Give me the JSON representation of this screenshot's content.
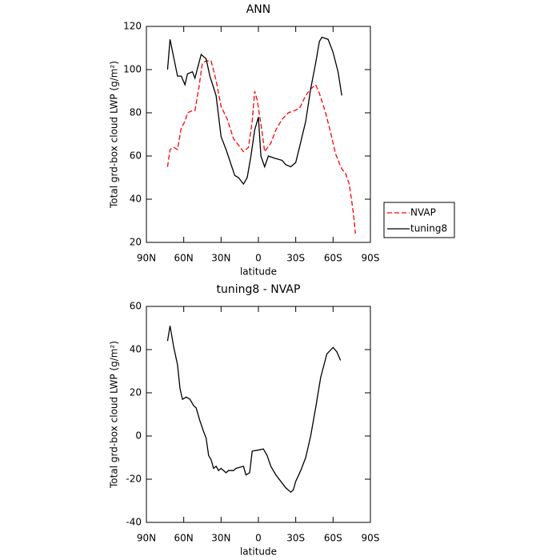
{
  "chart_data": [
    {
      "type": "line",
      "title": "ANN",
      "xlabel": "latitude",
      "ylabel": "Total grd-box cloud LWP (g/m²)",
      "xlim": [
        90,
        -90
      ],
      "xticks": [
        {
          "value": 90,
          "label": "90N"
        },
        {
          "value": 60,
          "label": "60N"
        },
        {
          "value": 30,
          "label": "30N"
        },
        0,
        {
          "value": -30,
          "label": "30S"
        },
        {
          "value": -60,
          "label": "60S"
        },
        {
          "value": -90,
          "label": "90S"
        }
      ],
      "ylim": [
        20,
        120
      ],
      "yticks": [
        20,
        40,
        60,
        80,
        100,
        120
      ],
      "legend": "outside-right",
      "series": [
        {
          "name": "NVAP",
          "color": "#ff0000",
          "dashed": true,
          "x": [
            73,
            71,
            68,
            65,
            62,
            59,
            57,
            53,
            51,
            48,
            45,
            42,
            38,
            34,
            30,
            25,
            20,
            16,
            12,
            8,
            5,
            3,
            1,
            -3,
            -5,
            -10,
            -14,
            -19,
            -24,
            -29,
            -33,
            -38,
            -42,
            -46,
            -49,
            -54,
            -58,
            -62,
            -67,
            -70,
            -73,
            -76,
            -78
          ],
          "values": [
            55,
            63,
            64,
            63,
            73,
            76,
            80,
            81,
            81,
            91,
            103,
            104,
            104,
            95,
            83,
            77,
            68,
            65,
            62,
            64,
            76,
            90,
            86,
            71,
            62,
            66,
            72,
            77,
            80,
            81,
            82,
            88,
            91,
            93,
            89,
            80,
            71,
            61,
            54,
            52,
            47,
            35,
            24
          ]
        },
        {
          "name": "tuning8",
          "color": "#000000",
          "dashed": false,
          "x": [
            73,
            71,
            65,
            62,
            59,
            57,
            53,
            51,
            46,
            42,
            39,
            34,
            30,
            26,
            19,
            16,
            12,
            9,
            6,
            3,
            0,
            -2,
            -5,
            -8,
            -13,
            -19,
            -22,
            -26,
            -30,
            -33,
            -38,
            -42,
            -46,
            -49,
            -51,
            -56,
            -60,
            -64,
            -67
          ],
          "values": [
            100,
            114,
            97,
            97,
            93,
            98,
            99,
            96,
            107,
            105,
            97,
            88,
            69,
            63,
            51,
            50,
            47,
            50,
            60,
            72,
            78,
            60,
            55,
            60,
            59,
            58,
            56,
            55,
            57,
            64,
            76,
            91,
            103,
            113,
            115,
            114,
            108,
            99,
            88
          ]
        }
      ]
    },
    {
      "type": "line",
      "title": "tuning8 - NVAP",
      "xlabel": "latitude",
      "ylabel": "Total grd-box cloud LWP (g/m²)",
      "xlim": [
        90,
        -90
      ],
      "xticks": [
        {
          "value": 90,
          "label": "90N"
        },
        {
          "value": 60,
          "label": "60N"
        },
        {
          "value": 30,
          "label": "30N"
        },
        0,
        {
          "value": -30,
          "label": "30S"
        },
        {
          "value": -60,
          "label": "60S"
        },
        {
          "value": -90,
          "label": "90S"
        }
      ],
      "ylim": [
        -40,
        60
      ],
      "yticks": [
        -40,
        -20,
        0,
        20,
        40,
        60
      ],
      "series": [
        {
          "color": "#000000",
          "dashed": false,
          "x": [
            73,
            71,
            68,
            65,
            63,
            61,
            58,
            55,
            52,
            50,
            47,
            44,
            42,
            40,
            38,
            36,
            34,
            32,
            30,
            28,
            26,
            24,
            20,
            18,
            12,
            10,
            7,
            5,
            0,
            -4,
            -7,
            -10,
            -14,
            -18,
            -22,
            -26,
            -28,
            -30,
            -34,
            -38,
            -42,
            -46,
            -50,
            -55,
            -60,
            -63,
            -66
          ],
          "values": [
            44,
            51,
            41,
            33,
            22,
            17,
            18,
            17,
            14,
            13,
            7,
            2,
            -1,
            -9,
            -11,
            -15,
            -14,
            -16,
            -15,
            -16,
            -17,
            -16,
            -16,
            -15,
            -14,
            -18,
            -17,
            -7,
            -6.5,
            -6,
            -9,
            -14,
            -18,
            -21,
            -24,
            -26,
            -25,
            -21,
            -16,
            -10,
            0,
            13,
            27,
            38,
            41,
            39,
            35
          ]
        }
      ]
    }
  ]
}
